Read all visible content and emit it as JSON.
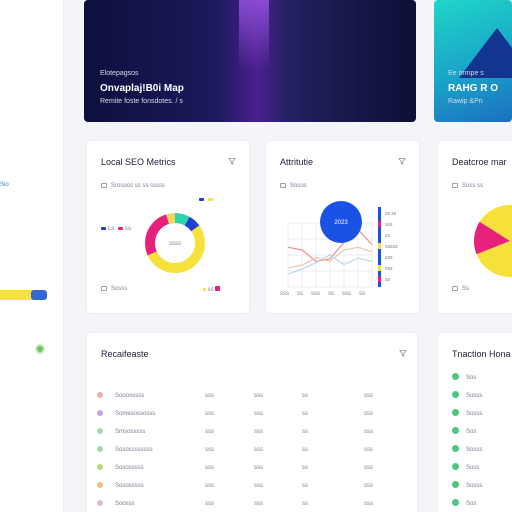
{
  "sidebar": {
    "link_label": "Sio",
    "progress": 0.35,
    "progress_colors": {
      "track": "#f6e33a",
      "fill": "#3566d6"
    },
    "status_color": "#69c25a"
  },
  "heroes": [
    {
      "eyebrow": "Elotepagsos",
      "title": "Onvaplaj!B0i Map",
      "subtitle": "Remite foste fonsdotes. / s"
    },
    {
      "eyebrow": "Ee ormpe s",
      "title": "RAHG R O",
      "subtitle": "Rawip &Pn"
    }
  ],
  "seo_card": {
    "title": "Local SEO Metrics",
    "filter_icon": "filter-icon",
    "meta": "Srosoos  ss ss  sssss",
    "legend_labels": [
      "Ls",
      "ss"
    ],
    "center_label": "ssss",
    "footer_left": "Sosss",
    "footer_right": "ss",
    "segments": [
      {
        "value": 8,
        "color": "#2cd3ad"
      },
      {
        "value": 7,
        "color": "#1e3fd1"
      },
      {
        "value": 53,
        "color": "#f6e13a"
      },
      {
        "value": 27,
        "color": "#e6217c"
      },
      {
        "value": 5,
        "color": "#f3d85a"
      }
    ]
  },
  "attribution_card": {
    "title": "Attritutie",
    "filter_icon": "filter-icon",
    "meta": "Sosos",
    "bubble_label": "2023",
    "bubble_color": "#1b52e6",
    "legend_items": [
      "ss ss",
      "sss",
      "ss",
      "sssss",
      "sss",
      "sss",
      "ss"
    ],
    "legend_colors": [
      "#1b52e6",
      "#e6217c",
      "#1b52e6",
      "#f6e13a",
      "#1b52e6",
      "#f6e13a",
      "#e6217c"
    ],
    "x_ticks": [
      "sss",
      "ss",
      "sss",
      "ss",
      "sss",
      "ss"
    ],
    "series": [
      {
        "color": "#f08c8c",
        "values": [
          62,
          58,
          40,
          44,
          70,
          90,
          66
        ]
      },
      {
        "color": "#e8c8b0",
        "values": [
          30,
          34,
          46,
          40,
          58,
          62,
          55
        ]
      },
      {
        "color": "#b9d7f0",
        "values": [
          20,
          28,
          38,
          50,
          35,
          45,
          40
        ]
      }
    ]
  },
  "demographics_card": {
    "title": "Deatcroe  mar",
    "meta": "Soss  ss",
    "footer": "Ss",
    "segments": [
      {
        "value": 85,
        "color": "#f6e13a"
      },
      {
        "value": 15,
        "color": "#e6217c"
      }
    ]
  },
  "records_card": {
    "title": "Recaifeaste",
    "filter_icon": "filter-icon",
    "rows": [
      {
        "dot": "#f3a9b4",
        "name": "Sooososss",
        "c2": "sss",
        "c3": "sss",
        "c4": "ss",
        "c5": "sss"
      },
      {
        "dot": "#c7a4e8",
        "name": "Somesossosss",
        "c2": "sss",
        "c3": "sss",
        "c4": "ss",
        "c5": "sss"
      },
      {
        "dot": "#a6d8b0",
        "name": "Smsosssss",
        "c2": "sss",
        "c3": "sss",
        "c4": "ss",
        "c5": "sss"
      },
      {
        "dot": "#a6d8b0",
        "name": "Sosossssssss",
        "c2": "sss",
        "c3": "sss",
        "c4": "ss",
        "c5": "sss"
      },
      {
        "dot": "#b6dd74",
        "name": "Sososssss",
        "c2": "sss",
        "c3": "sss",
        "c4": "ss",
        "c5": "sss"
      },
      {
        "dot": "#f3c07a",
        "name": "Sososssss",
        "c2": "sss",
        "c3": "sss",
        "c4": "ss",
        "c5": "sss"
      },
      {
        "dot": "#e9b9c0",
        "name": "Soosss",
        "c2": "sss",
        "c3": "sss",
        "c4": "ss",
        "c5": "sss"
      }
    ]
  },
  "top_card": {
    "title": "Tnaction Hona",
    "items": [
      {
        "dot": "#4cc57e",
        "label": "Sos"
      },
      {
        "dot": "#4cc57e",
        "label": "Sosss"
      },
      {
        "dot": "#4cc57e",
        "label": "Sosss"
      },
      {
        "dot": "#4cc57e",
        "label": "Sos"
      },
      {
        "dot": "#4cc57e",
        "label": "Sosss"
      },
      {
        "dot": "#4cc57e",
        "label": "Soss"
      },
      {
        "dot": "#4cc57e",
        "label": "Sosss"
      },
      {
        "dot": "#4cc57e",
        "label": "Sos"
      }
    ]
  }
}
